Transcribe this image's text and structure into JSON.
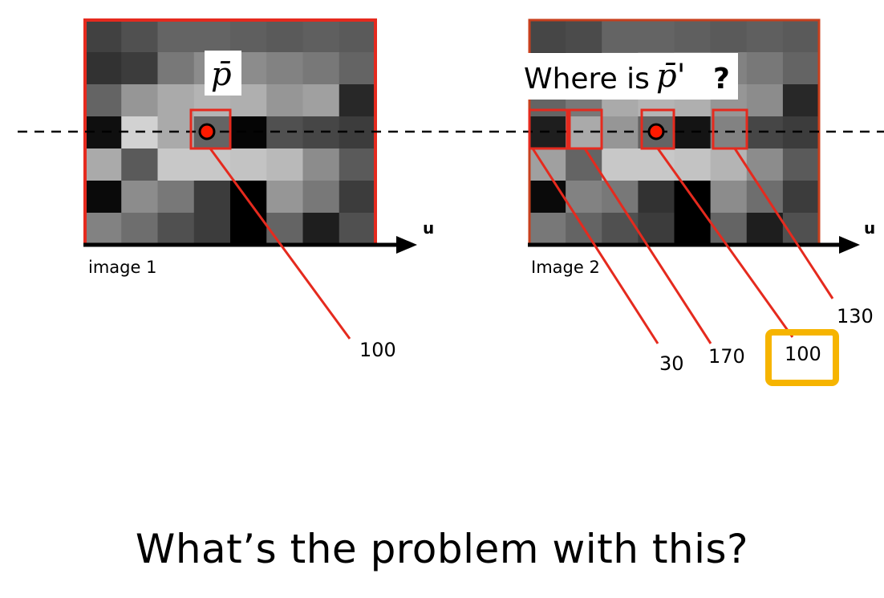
{
  "diagram": {
    "image1": {
      "label": "image 1",
      "point_label": "p̄",
      "pixel_value": "100",
      "grid": [
        [
          65,
          80,
          100,
          100,
          95,
          90,
          95,
          90
        ],
        [
          50,
          60,
          120,
          140,
          140,
          130,
          120,
          100
        ],
        [
          100,
          150,
          170,
          180,
          175,
          150,
          160,
          40
        ],
        [
          15,
          210,
          170,
          100,
          5,
          80,
          70,
          60
        ],
        [
          170,
          90,
          200,
          200,
          195,
          185,
          140,
          90
        ],
        [
          10,
          140,
          120,
          60,
          0,
          150,
          120,
          60
        ],
        [
          130,
          110,
          80,
          60,
          0,
          100,
          30,
          80
        ]
      ]
    },
    "image2": {
      "label": "Image 2",
      "question": "Where is",
      "point_label": "p̄'",
      "question_mark": "?",
      "grid": [
        [
          70,
          75,
          100,
          100,
          95,
          90,
          95,
          90
        ],
        [
          60,
          70,
          110,
          130,
          140,
          130,
          120,
          100
        ],
        [
          100,
          120,
          170,
          180,
          175,
          150,
          140,
          40
        ],
        [
          30,
          170,
          150,
          100,
          20,
          130,
          70,
          60
        ],
        [
          160,
          100,
          200,
          200,
          195,
          180,
          140,
          90
        ],
        [
          10,
          130,
          120,
          50,
          0,
          140,
          110,
          60
        ],
        [
          120,
          100,
          80,
          60,
          0,
          100,
          30,
          80
        ]
      ],
      "candidates": [
        {
          "value": "30"
        },
        {
          "value": "170"
        },
        {
          "value": "100",
          "highlighted": true
        },
        {
          "value": "130"
        }
      ]
    },
    "axis_label": "u",
    "colors": {
      "frame": "#e52a1e",
      "point": "#ff1a00",
      "highlight": "#f6b400",
      "epipolar_line": "#000000"
    }
  },
  "question_text": "What’s the problem with this?"
}
